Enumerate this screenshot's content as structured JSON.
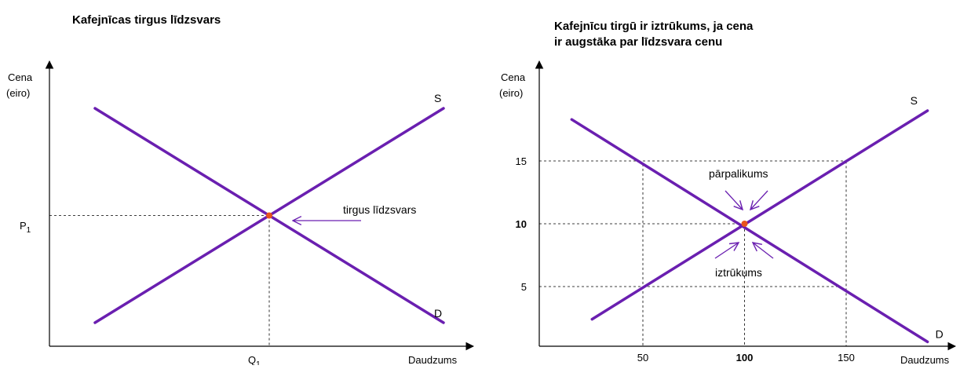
{
  "accent_color": "#6a1fb0",
  "point_color": "#e8541e",
  "chart_data": [
    {
      "type": "line",
      "title": "Kafejnīcas tirgus līdzsvars",
      "ylabel_line1": "Cena",
      "ylabel_line2": "(eiro)",
      "xlabel": "Daudzums",
      "series": [
        {
          "name": "S",
          "x": [
            1,
            10
          ],
          "y": [
            1,
            10
          ]
        },
        {
          "name": "D",
          "x": [
            1,
            10
          ],
          "y": [
            10,
            1
          ]
        }
      ],
      "equilibrium": {
        "x": 5.5,
        "y": 5.5
      },
      "equilibrium_price_label": "P",
      "equilibrium_price_sub": "1",
      "equilibrium_quantity_label": "Q",
      "equilibrium_quantity_sub": "1",
      "annotation": "tirgus līdzsvars",
      "grid": false
    },
    {
      "type": "line",
      "title_line1": "Kafejnīcu tirgū ir iztrūkums, ja cena",
      "title_line2": "ir augstāka par līdzsvara cenu",
      "ylabel_line1": "Cena",
      "ylabel_line2": "(eiro)",
      "xlabel": "Daudzums",
      "xticks": [
        50,
        100,
        150
      ],
      "xticks_bold": [
        100
      ],
      "yticks": [
        5,
        10,
        15
      ],
      "yticks_bold": [
        10
      ],
      "series": [
        {
          "name": "S",
          "x": [
            25,
            190
          ],
          "y": [
            2.4,
            19
          ]
        },
        {
          "name": "D",
          "x": [
            15,
            190
          ],
          "y": [
            18.3,
            0.6
          ]
        }
      ],
      "equilibrium": {
        "x": 100,
        "y": 10
      },
      "annotation_surplus": "pārpalikums",
      "annotation_shortage": "iztrūkums",
      "grid": false
    }
  ]
}
